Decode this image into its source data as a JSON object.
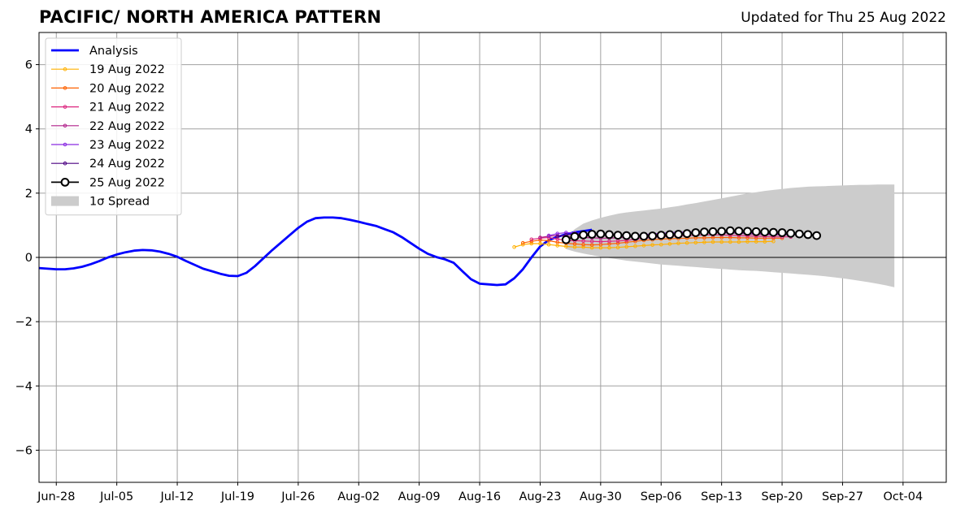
{
  "header": {
    "title": "PACIFIC/ NORTH AMERICA PATTERN",
    "updated": "Updated for Thu 25 Aug 2022"
  },
  "chart_data": {
    "type": "line",
    "xlim": [
      "2022-06-26",
      "2022-10-09"
    ],
    "ylim": [
      -7,
      7
    ],
    "yticks": [
      -6,
      -4,
      -2,
      0,
      2,
      4,
      6
    ],
    "ytick_labels": [
      "−6",
      "−4",
      "−2",
      "0",
      "2",
      "4",
      "6"
    ],
    "xticks": [
      "2022-06-28",
      "2022-07-05",
      "2022-07-12",
      "2022-07-19",
      "2022-07-26",
      "2022-08-02",
      "2022-08-09",
      "2022-08-16",
      "2022-08-23",
      "2022-08-30",
      "2022-09-06",
      "2022-09-13",
      "2022-09-20",
      "2022-09-27",
      "2022-10-04"
    ],
    "xtick_labels": [
      "Jun-28",
      "Jul-05",
      "Jul-12",
      "Jul-19",
      "Jul-26",
      "Aug-02",
      "Aug-09",
      "Aug-16",
      "Aug-23",
      "Aug-30",
      "Sep-06",
      "Sep-13",
      "Sep-20",
      "Sep-27",
      "Oct-04"
    ],
    "grid": true,
    "legend_position": "top-left",
    "zero_line": 0,
    "analysis": {
      "name": "Analysis",
      "color": "#0000ff",
      "start": "2022-06-26",
      "values": [
        -0.33,
        -0.35,
        -0.37,
        -0.37,
        -0.34,
        -0.29,
        -0.21,
        -0.11,
        0.0,
        0.09,
        0.16,
        0.21,
        0.23,
        0.22,
        0.18,
        0.11,
        0.02,
        -0.11,
        -0.23,
        -0.35,
        -0.43,
        -0.51,
        -0.57,
        -0.58,
        -0.48,
        -0.27,
        -0.02,
        0.23,
        0.46,
        0.69,
        0.92,
        1.11,
        1.22,
        1.24,
        1.24,
        1.22,
        1.17,
        1.11,
        1.04,
        0.98,
        0.88,
        0.78,
        0.63,
        0.45,
        0.27,
        0.11,
        0.01,
        -0.06,
        -0.17,
        -0.43,
        -0.68,
        -0.82,
        -0.84,
        -0.86,
        -0.84,
        -0.65,
        -0.37,
        0.0,
        0.34,
        0.54,
        0.64,
        0.72,
        0.78,
        0.82,
        0.86
      ]
    },
    "forecasts": [
      {
        "name": "19 Aug 2022",
        "color": "#ffb000",
        "start": "2022-08-20",
        "values": [
          0.32,
          0.4,
          0.43,
          0.43,
          0.4,
          0.37,
          0.34,
          0.32,
          0.32,
          0.3,
          0.3,
          0.3,
          0.31,
          0.33,
          0.35,
          0.37,
          0.39,
          0.4,
          0.42,
          0.44,
          0.45,
          0.46,
          0.47,
          0.48,
          0.48,
          0.48,
          0.48,
          0.49,
          0.49,
          0.49,
          0.5
        ]
      },
      {
        "name": "20 Aug 2022",
        "color": "#fe6100",
        "start": "2022-08-21",
        "values": [
          0.45,
          0.5,
          0.54,
          0.52,
          0.47,
          0.44,
          0.42,
          0.4,
          0.39,
          0.4,
          0.42,
          0.44,
          0.47,
          0.5,
          0.53,
          0.55,
          0.57,
          0.58,
          0.59,
          0.6,
          0.61,
          0.61,
          0.62,
          0.62,
          0.62,
          0.61,
          0.61,
          0.6,
          0.6,
          0.6,
          0.6
        ]
      },
      {
        "name": "21 Aug 2022",
        "color": "#dc267f",
        "start": "2022-08-22",
        "values": [
          0.56,
          0.6,
          0.62,
          0.57,
          0.53,
          0.52,
          0.51,
          0.5,
          0.49,
          0.5,
          0.51,
          0.53,
          0.56,
          0.59,
          0.62,
          0.64,
          0.66,
          0.67,
          0.68,
          0.69,
          0.7,
          0.7,
          0.7,
          0.69,
          0.68,
          0.67,
          0.66,
          0.65,
          0.64,
          0.64,
          0.64
        ]
      },
      {
        "name": "22 Aug 2022",
        "color": "#b0208a",
        "start": "2022-08-23",
        "values": [
          0.62,
          0.66,
          0.68,
          0.66,
          0.63,
          0.62,
          0.61,
          0.6,
          0.6,
          0.61,
          0.63,
          0.65,
          0.68,
          0.71,
          0.74,
          0.76,
          0.78,
          0.79,
          0.79,
          0.79,
          0.78,
          0.77,
          0.76,
          0.75,
          0.73,
          0.72,
          0.71,
          0.7,
          0.7,
          0.7,
          0.7
        ]
      },
      {
        "name": "23 Aug 2022",
        "color": "#8a2be2",
        "start": "2022-08-24",
        "values": [
          0.68,
          0.74,
          0.77,
          0.76,
          0.73,
          0.71,
          0.7,
          0.69,
          0.68,
          0.68,
          0.69,
          0.71,
          0.73,
          0.75,
          0.77,
          0.78,
          0.79,
          0.79,
          0.8,
          0.8,
          0.79,
          0.78,
          0.77,
          0.76,
          0.75,
          0.74,
          0.73,
          0.72,
          0.71,
          0.71,
          0.71
        ]
      },
      {
        "name": "24 Aug 2022",
        "color": "#4b0082",
        "start": "2022-08-25",
        "values": [
          0.65,
          0.7,
          0.73,
          0.73,
          0.72,
          0.7,
          0.69,
          0.68,
          0.67,
          0.67,
          0.67,
          0.68,
          0.7,
          0.72,
          0.74,
          0.76,
          0.77,
          0.78,
          0.79,
          0.79,
          0.79,
          0.78,
          0.78,
          0.77,
          0.76,
          0.75,
          0.74,
          0.73,
          0.72,
          0.71,
          0.7
        ]
      },
      {
        "name": "25 Aug 2022",
        "color": "#000000",
        "marker_fill": "#ffffff",
        "start": "2022-08-26",
        "values": [
          0.55,
          0.65,
          0.7,
          0.72,
          0.73,
          0.71,
          0.69,
          0.68,
          0.66,
          0.66,
          0.67,
          0.69,
          0.71,
          0.72,
          0.74,
          0.77,
          0.79,
          0.8,
          0.81,
          0.83,
          0.82,
          0.81,
          0.8,
          0.79,
          0.78,
          0.77,
          0.75,
          0.73,
          0.71,
          0.68
        ]
      }
    ],
    "spread": {
      "name": "1σ Spread",
      "color": "#cccccc",
      "start": "2022-08-26",
      "upper": [
        0.65,
        0.88,
        1.05,
        1.15,
        1.23,
        1.3,
        1.36,
        1.4,
        1.43,
        1.46,
        1.49,
        1.52,
        1.56,
        1.6,
        1.65,
        1.69,
        1.74,
        1.79,
        1.84,
        1.89,
        1.94,
        1.99,
        2.03,
        2.07,
        2.1,
        2.13,
        2.16,
        2.18,
        2.2,
        2.21,
        2.22,
        2.23,
        2.24,
        2.25,
        2.26,
        2.26,
        2.27,
        2.27,
        2.27
      ],
      "lower": [
        0.26,
        0.18,
        0.12,
        0.07,
        0.02,
        -0.02,
        -0.06,
        -0.1,
        -0.13,
        -0.16,
        -0.19,
        -0.22,
        -0.24,
        -0.26,
        -0.28,
        -0.3,
        -0.32,
        -0.34,
        -0.36,
        -0.38,
        -0.4,
        -0.41,
        -0.42,
        -0.44,
        -0.46,
        -0.48,
        -0.5,
        -0.52,
        -0.54,
        -0.56,
        -0.59,
        -0.62,
        -0.65,
        -0.69,
        -0.73,
        -0.77,
        -0.82,
        -0.87,
        -0.93
      ]
    }
  }
}
